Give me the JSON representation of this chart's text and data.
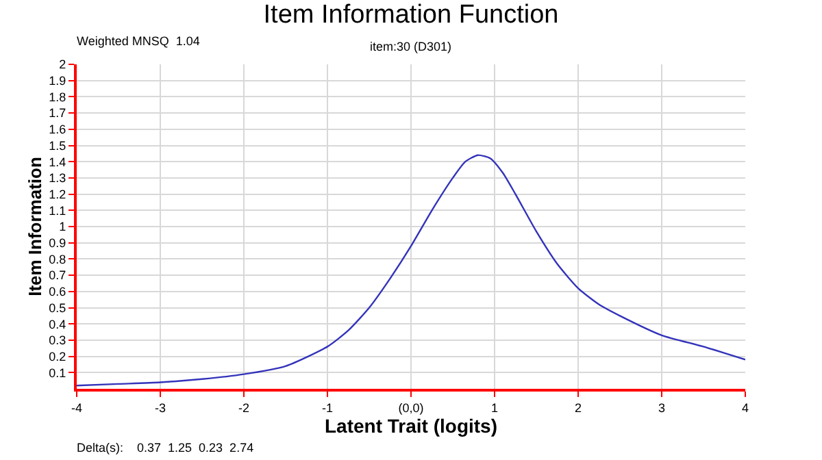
{
  "chart_data": {
    "type": "line",
    "title": "Item Information Function",
    "subtitle": "item:30 (D301)",
    "xlabel": "Latent Trait (logits)",
    "ylabel": "Item Information",
    "annotations": [
      "Weighted MNSQ  1.04",
      "Delta(s):    0.37  1.25  0.23  2.74"
    ],
    "x": [
      -4,
      -3.5,
      -3,
      -2.5,
      -2,
      -1.5,
      -1,
      -0.75,
      -0.5,
      -0.25,
      0,
      0.25,
      0.5,
      0.65,
      0.8,
      0.95,
      1.1,
      1.25,
      1.5,
      1.75,
      2,
      2.25,
      2.5,
      3,
      3.5,
      4
    ],
    "series": [
      {
        "color": "#3333bb",
        "values": [
          0.02,
          0.03,
          0.04,
          0.06,
          0.09,
          0.14,
          0.26,
          0.36,
          0.5,
          0.68,
          0.88,
          1.1,
          1.3,
          1.4,
          1.44,
          1.42,
          1.33,
          1.2,
          0.97,
          0.77,
          0.62,
          0.52,
          0.45,
          0.33,
          0.26,
          0.18
        ]
      }
    ],
    "xlim": [
      -4,
      4
    ],
    "xticks": [
      -4,
      -3,
      -2,
      -1,
      {
        "value": 0,
        "label": "(0,0)"
      },
      1,
      2,
      3,
      4
    ],
    "ylim": [
      0,
      2
    ],
    "yticks": [
      0.1,
      0.2,
      0.3,
      0.4,
      0.5,
      0.6,
      0.7,
      0.8,
      0.9,
      1,
      1.1,
      1.2,
      1.3,
      1.4,
      1.5,
      1.6,
      1.7,
      1.8,
      1.9,
      2
    ],
    "grid": true,
    "marker": "none",
    "line_style": "solid"
  }
}
